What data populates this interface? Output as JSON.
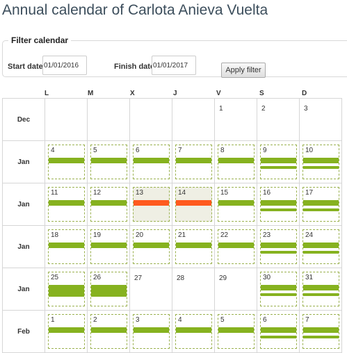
{
  "title": "Annual calendar of Carlota Anieva Vuelta",
  "filter": {
    "legend": "Filter calendar",
    "start_label": "Start date",
    "start_value": "01/01/2016",
    "finish_label": "Finish date",
    "finish_value": "01/01/2017",
    "apply_label": "Apply filter"
  },
  "weekdays": [
    "L",
    "M",
    "X",
    "J",
    "V",
    "S",
    "D"
  ],
  "colors": {
    "workday": "#86b21f",
    "absence": "#ff5a1f",
    "highlight": "#efefe4"
  },
  "rows": [
    {
      "month": "Dec",
      "days": [
        {
          "n": ""
        },
        {
          "n": ""
        },
        {
          "n": ""
        },
        {
          "n": ""
        },
        {
          "n": "1",
          "marked": false
        },
        {
          "n": "2",
          "marked": false
        },
        {
          "n": "3",
          "marked": false
        }
      ]
    },
    {
      "month": "Jan",
      "days": [
        {
          "n": "4",
          "marked": true,
          "bars": [
            "thin"
          ]
        },
        {
          "n": "5",
          "marked": true,
          "bars": [
            "thin"
          ]
        },
        {
          "n": "6",
          "marked": true,
          "bars": [
            "thin"
          ]
        },
        {
          "n": "7",
          "marked": true,
          "bars": [
            "thin"
          ]
        },
        {
          "n": "8",
          "marked": true,
          "bars": [
            "thin"
          ]
        },
        {
          "n": "9",
          "marked": true,
          "bars": [
            "thin",
            "line"
          ]
        },
        {
          "n": "10",
          "marked": true,
          "bars": [
            "thin",
            "line"
          ]
        }
      ]
    },
    {
      "month": "Jan",
      "days": [
        {
          "n": "11",
          "marked": true,
          "bars": [
            "thin"
          ]
        },
        {
          "n": "12",
          "marked": true,
          "bars": [
            "thin"
          ]
        },
        {
          "n": "13",
          "marked": true,
          "highlight": true,
          "bars": [
            "absence"
          ]
        },
        {
          "n": "14",
          "marked": true,
          "highlight": true,
          "bars": [
            "absence"
          ]
        },
        {
          "n": "15",
          "marked": true,
          "bars": [
            "thin"
          ]
        },
        {
          "n": "16",
          "marked": true,
          "bars": [
            "thin",
            "line"
          ]
        },
        {
          "n": "17",
          "marked": true,
          "bars": [
            "thin",
            "line"
          ]
        }
      ]
    },
    {
      "month": "Jan",
      "days": [
        {
          "n": "18",
          "marked": true,
          "bars": [
            "thin"
          ]
        },
        {
          "n": "19",
          "marked": true,
          "bars": [
            "thin"
          ]
        },
        {
          "n": "20",
          "marked": true,
          "bars": [
            "thin"
          ]
        },
        {
          "n": "21",
          "marked": true,
          "bars": [
            "thin"
          ]
        },
        {
          "n": "22",
          "marked": true,
          "bars": [
            "thin"
          ]
        },
        {
          "n": "23",
          "marked": true,
          "bars": [
            "thin",
            "line"
          ]
        },
        {
          "n": "24",
          "marked": true,
          "bars": [
            "thin",
            "line"
          ]
        }
      ]
    },
    {
      "month": "Jan",
      "days": [
        {
          "n": "25",
          "marked": true,
          "bars": [
            "thick"
          ]
        },
        {
          "n": "26",
          "marked": true,
          "bars": [
            "thick"
          ]
        },
        {
          "n": "27",
          "marked": false
        },
        {
          "n": "28",
          "marked": false
        },
        {
          "n": "29",
          "marked": false
        },
        {
          "n": "30",
          "marked": true,
          "bars": [
            "thin",
            "line"
          ]
        },
        {
          "n": "31",
          "marked": true,
          "bars": [
            "thin",
            "line"
          ]
        }
      ]
    },
    {
      "month": "Feb",
      "days": [
        {
          "n": "1",
          "marked": true,
          "bars": [
            "thin"
          ]
        },
        {
          "n": "2",
          "marked": true,
          "bars": [
            "thin"
          ]
        },
        {
          "n": "3",
          "marked": true,
          "bars": [
            "thin"
          ]
        },
        {
          "n": "4",
          "marked": true,
          "bars": [
            "thin"
          ]
        },
        {
          "n": "5",
          "marked": true,
          "bars": [
            "thin"
          ]
        },
        {
          "n": "6",
          "marked": true,
          "bars": [
            "thin",
            "line"
          ]
        },
        {
          "n": "7",
          "marked": true,
          "bars": [
            "thin",
            "line"
          ]
        }
      ]
    }
  ]
}
